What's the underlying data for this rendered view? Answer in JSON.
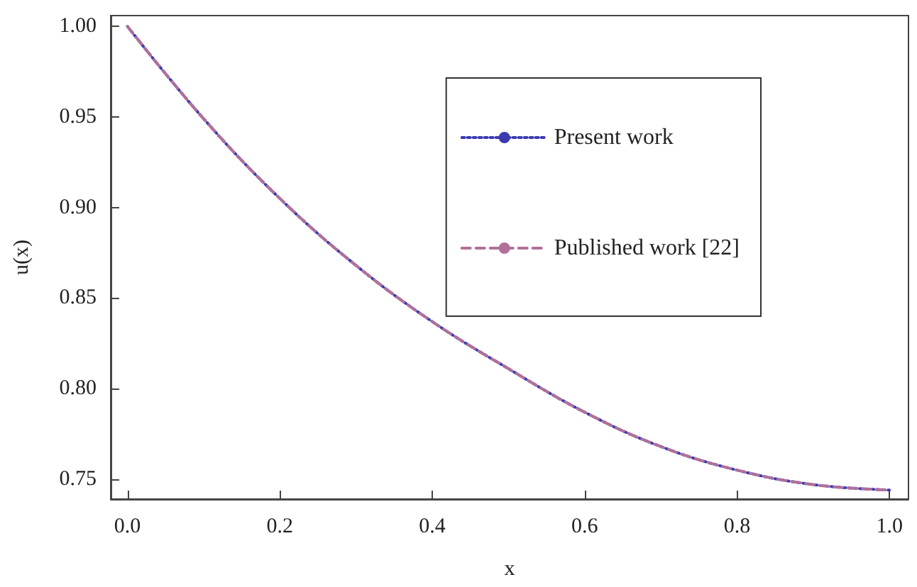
{
  "chart_data": {
    "type": "line",
    "xlabel": "x",
    "ylabel": "u(x)",
    "x": [
      0,
      0.1,
      0.2,
      0.3,
      0.4,
      0.5,
      0.6,
      0.7,
      0.8,
      0.9,
      1.0
    ],
    "series": [
      {
        "name": "Present work",
        "color": "#3b3bb0",
        "line_style": "dotted",
        "values": [
          1.0,
          0.949,
          0.905,
          0.868,
          0.837,
          0.811,
          0.787,
          0.768,
          0.755,
          0.747,
          0.744
        ]
      },
      {
        "name": "Published work [22]",
        "color": "#b0709a",
        "line_style": "dashed",
        "values": [
          1.0,
          0.949,
          0.905,
          0.868,
          0.837,
          0.811,
          0.787,
          0.768,
          0.755,
          0.747,
          0.744
        ]
      }
    ],
    "xlim": [
      -0.022,
      1.025
    ],
    "ylim": [
      0.739,
      1.006
    ],
    "xticks": [
      {
        "value": 0,
        "label": "0.0"
      },
      {
        "value": 0.2,
        "label": "0.2"
      },
      {
        "value": 0.4,
        "label": "0.4"
      },
      {
        "value": 0.6,
        "label": "0.6"
      },
      {
        "value": 0.8,
        "label": "0.8"
      },
      {
        "value": 1.0,
        "label": "1.0"
      }
    ],
    "yticks": [
      {
        "value": 0.75,
        "label": "0.75"
      },
      {
        "value": 0.8,
        "label": "0.80"
      },
      {
        "value": 0.85,
        "label": "0.85"
      },
      {
        "value": 0.9,
        "label": "0.90"
      },
      {
        "value": 0.95,
        "label": "0.95"
      },
      {
        "value": 1.0,
        "label": "1.00"
      }
    ],
    "marker": "none",
    "grid": false,
    "legend": "top right"
  }
}
